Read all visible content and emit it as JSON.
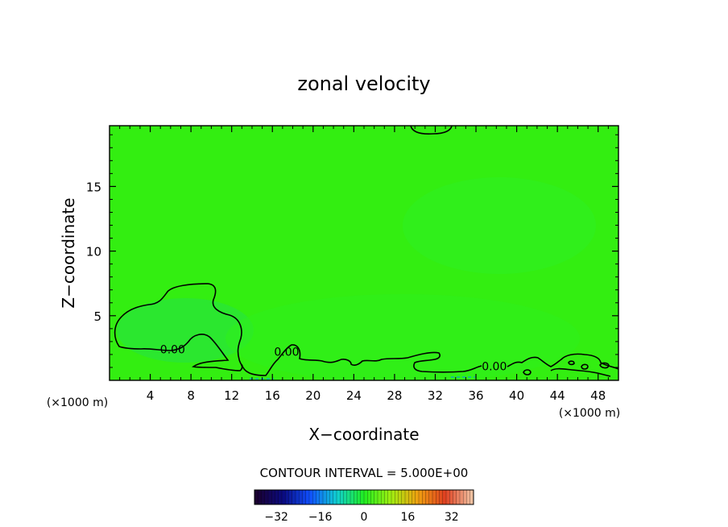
{
  "chart_data": {
    "type": "heatmap",
    "title": "zonal velocity",
    "xlabel": "X−coordinate",
    "ylabel": "Z−coordinate",
    "x_unit_label": "(×1000 m)",
    "xlim": [
      0,
      50
    ],
    "ylim": [
      0,
      19.7
    ],
    "x_ticks": [
      4,
      8,
      12,
      16,
      20,
      24,
      28,
      32,
      36,
      40,
      44,
      48
    ],
    "x_tick_labels": [
      "4",
      "8",
      "12",
      "16",
      "20",
      "24",
      "28",
      "32",
      "36",
      "40",
      "44",
      "48"
    ],
    "y_ticks": [
      5,
      10,
      15
    ],
    "y_tick_labels": [
      "5",
      "10",
      "15"
    ],
    "contour_labels": [
      {
        "text": "0.00",
        "x": 6.2,
        "z": 2.4
      },
      {
        "text": "0.00",
        "x": 17.4,
        "z": 2.2
      },
      {
        "text": "0.00",
        "x": 37.8,
        "z": 1.1
      }
    ],
    "contour_interval_label": "CONTOUR INTERVAL = 5.000E+00",
    "colorbar": {
      "range": [
        -40,
        40
      ],
      "tick_values": [
        -32,
        -16,
        0,
        16,
        32
      ],
      "tick_labels": [
        "−32",
        "−16",
        "0",
        "16",
        "32"
      ]
    },
    "colors": {
      "field_base": "#33ee11",
      "field_light": "#2ff01c",
      "field_blue": "#22dd55",
      "contour_line": "#000000",
      "colormap": [
        "#1a0030",
        "#0a0a80",
        "#1050ff",
        "#10d0d0",
        "#20ee20",
        "#a0ee10",
        "#f0a010",
        "#e04020",
        "#f0c0a0"
      ]
    }
  }
}
